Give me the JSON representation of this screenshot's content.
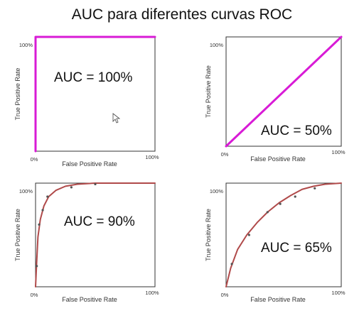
{
  "title": "AUC para diferentes curvas ROC",
  "chart_data": [
    {
      "type": "line",
      "xlabel": "False Positive Rate",
      "ylabel": "True Positive Rate",
      "x_tick_labels": [
        "0%",
        "100%"
      ],
      "y_tick_labels": [
        "100%"
      ],
      "xlim": [
        0,
        1
      ],
      "ylim": [
        0,
        1
      ],
      "annotation": "AUC = 100%",
      "line_color": "#d81bd6",
      "series": [
        {
          "x": [
            0,
            0,
            1
          ],
          "y": [
            0,
            1,
            1
          ]
        }
      ]
    },
    {
      "type": "line",
      "xlabel": "False Positive Rate",
      "ylabel": "True Positive Rate",
      "x_tick_labels": [
        "0%",
        "100%"
      ],
      "y_tick_labels": [
        "100%"
      ],
      "xlim": [
        0,
        1
      ],
      "ylim": [
        0,
        1
      ],
      "annotation": "AUC = 50%",
      "line_color": "#d81bd6",
      "series": [
        {
          "x": [
            0,
            1
          ],
          "y": [
            0,
            1
          ]
        }
      ]
    },
    {
      "type": "line",
      "xlabel": "False Positive Rate",
      "ylabel": "True Positive Rate",
      "x_tick_labels": [
        "0%",
        "100%"
      ],
      "y_tick_labels": [
        "100%"
      ],
      "xlim": [
        0,
        1
      ],
      "ylim": [
        0,
        1
      ],
      "annotation": "AUC = 90%",
      "line_color": "#b04a4a",
      "point_color": "#555555",
      "series": [
        {
          "x": [
            0,
            0.01,
            0.02,
            0.04,
            0.07,
            0.11,
            0.17,
            0.25,
            0.35,
            0.5,
            0.7,
            1
          ],
          "y": [
            0,
            0.25,
            0.48,
            0.65,
            0.78,
            0.87,
            0.93,
            0.97,
            0.99,
            1,
            1,
            1
          ],
          "points_x": [
            0.01,
            0.03,
            0.06,
            0.1,
            0.3,
            0.5
          ],
          "points_y": [
            0.2,
            0.6,
            0.74,
            0.87,
            0.96,
            0.99
          ]
        }
      ]
    },
    {
      "type": "line",
      "xlabel": "False Positive Rate",
      "ylabel": "True Positive Rate",
      "x_tick_labels": [
        "0%",
        "100%"
      ],
      "y_tick_labels": [
        "100%"
      ],
      "xlim": [
        0,
        1
      ],
      "ylim": [
        0,
        1
      ],
      "annotation": "AUC = 65%",
      "line_color": "#b04a4a",
      "point_color": "#555555",
      "series": [
        {
          "x": [
            0,
            0.04,
            0.1,
            0.18,
            0.27,
            0.36,
            0.46,
            0.56,
            0.66,
            0.76,
            0.86,
            1
          ],
          "y": [
            0,
            0.18,
            0.36,
            0.5,
            0.62,
            0.72,
            0.81,
            0.88,
            0.94,
            0.97,
            0.99,
            1
          ],
          "points_x": [
            0.05,
            0.2,
            0.36,
            0.47,
            0.6,
            0.77
          ],
          "points_y": [
            0.22,
            0.5,
            0.72,
            0.8,
            0.87,
            0.95
          ]
        }
      ]
    }
  ]
}
